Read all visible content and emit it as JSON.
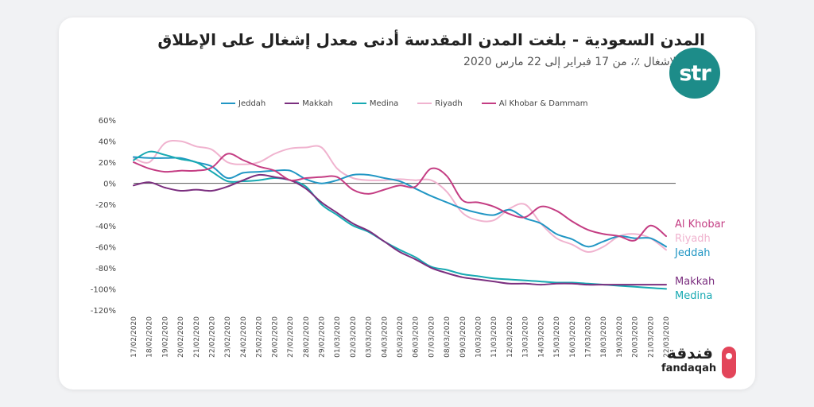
{
  "header": {
    "title": "المدن السعودية - بلغت المدن المقدسة أدنى معدل إشغال على الإطلاق",
    "subtitle": "نسبة الإشغال ٪، من 17 فبراير إلى 22 مارس 2020"
  },
  "logo": {
    "brand": "str",
    "color": "#1d8c89"
  },
  "branding": {
    "arabic": "فندقة",
    "english": "fandaqah",
    "accent": "#e3455a"
  },
  "chart_data": {
    "type": "line",
    "title": "",
    "xlabel": "",
    "ylabel": "",
    "ylim": [
      -120,
      60
    ],
    "y_ticks": [
      60,
      40,
      20,
      0,
      -20,
      -40,
      -60,
      -80,
      -100,
      -120
    ],
    "y_tick_labels": [
      "60%",
      "40%",
      "20%",
      "0%",
      "-20%",
      "-40%",
      "-60%",
      "-80%",
      "-100%",
      "-120%"
    ],
    "categories": [
      "17/02/2020",
      "18/02/2020",
      "19/02/2020",
      "20/02/2020",
      "21/02/2020",
      "22/02/2020",
      "23/02/2020",
      "24/02/2020",
      "25/02/2020",
      "26/02/2020",
      "27/02/2020",
      "28/02/2020",
      "29/02/2020",
      "01/03/2020",
      "02/03/2020",
      "03/03/2020",
      "04/03/2020",
      "05/03/2020",
      "06/03/2020",
      "07/03/2020",
      "08/03/2020",
      "09/03/2020",
      "10/03/2020",
      "11/03/2020",
      "12/03/2020",
      "13/03/2020",
      "14/03/2020",
      "15/03/2020",
      "16/03/2020",
      "17/03/2020",
      "18/03/2020",
      "19/03/2020",
      "20/03/2020",
      "21/03/2020",
      "22/03/2020"
    ],
    "legend_position": "top",
    "grid": false,
    "series": [
      {
        "name": "Jeddah",
        "color": "#2196c4",
        "values": [
          25,
          24,
          24,
          24,
          20,
          16,
          5,
          10,
          11,
          12,
          12,
          4,
          0,
          3,
          8,
          8,
          5,
          2,
          -5,
          -12,
          -18,
          -24,
          -28,
          -30,
          -25,
          -33,
          -38,
          -48,
          -53,
          -60,
          -55,
          -50,
          -52,
          -52,
          -60
        ]
      },
      {
        "name": "Makkah",
        "color": "#7b2f7f",
        "values": [
          -2,
          1,
          -4,
          -7,
          -6,
          -7,
          -3,
          3,
          8,
          6,
          3,
          -5,
          -18,
          -28,
          -38,
          -45,
          -55,
          -65,
          -72,
          -80,
          -85,
          -89,
          -91,
          -93,
          -95,
          -95,
          -96,
          -95,
          -95,
          -96,
          -96,
          -96,
          -96,
          -96,
          -96
        ]
      },
      {
        "name": "Medina",
        "color": "#17a9b2",
        "values": [
          22,
          30,
          27,
          23,
          20,
          11,
          2,
          2,
          3,
          5,
          3,
          -3,
          -20,
          -30,
          -40,
          -46,
          -55,
          -63,
          -70,
          -79,
          -82,
          -86,
          -88,
          -90,
          -91,
          -92,
          -93,
          -94,
          -94,
          -95,
          -96,
          -97,
          -98,
          -99,
          -100
        ]
      },
      {
        "name": "Riyadh",
        "color": "#f0b3cf",
        "values": [
          24,
          20,
          38,
          40,
          35,
          32,
          20,
          18,
          20,
          28,
          33,
          34,
          34,
          14,
          5,
          3,
          3,
          4,
          3,
          3,
          -8,
          -28,
          -35,
          -35,
          -24,
          -20,
          -38,
          -52,
          -58,
          -65,
          -60,
          -50,
          -48,
          -52,
          -63
        ]
      },
      {
        "name": "Al Khobar & Dammam",
        "color": "#c43d83",
        "values": [
          20,
          14,
          11,
          12,
          12,
          15,
          28,
          22,
          16,
          12,
          3,
          5,
          6,
          6,
          -6,
          -10,
          -6,
          -2,
          -3,
          14,
          7,
          -16,
          -18,
          -22,
          -29,
          -32,
          -22,
          -26,
          -36,
          -44,
          -48,
          -50,
          -54,
          -40,
          -50
        ]
      }
    ],
    "end_labels": [
      {
        "text": "Al Khobar",
        "color": "#c43d83"
      },
      {
        "text": "Riyadh",
        "color": "#f0b3cf"
      },
      {
        "text": "Jeddah",
        "color": "#2196c4"
      },
      {
        "text": "Makkah",
        "color": "#7b2f7f"
      },
      {
        "text": "Medina",
        "color": "#17a9b2"
      }
    ]
  }
}
